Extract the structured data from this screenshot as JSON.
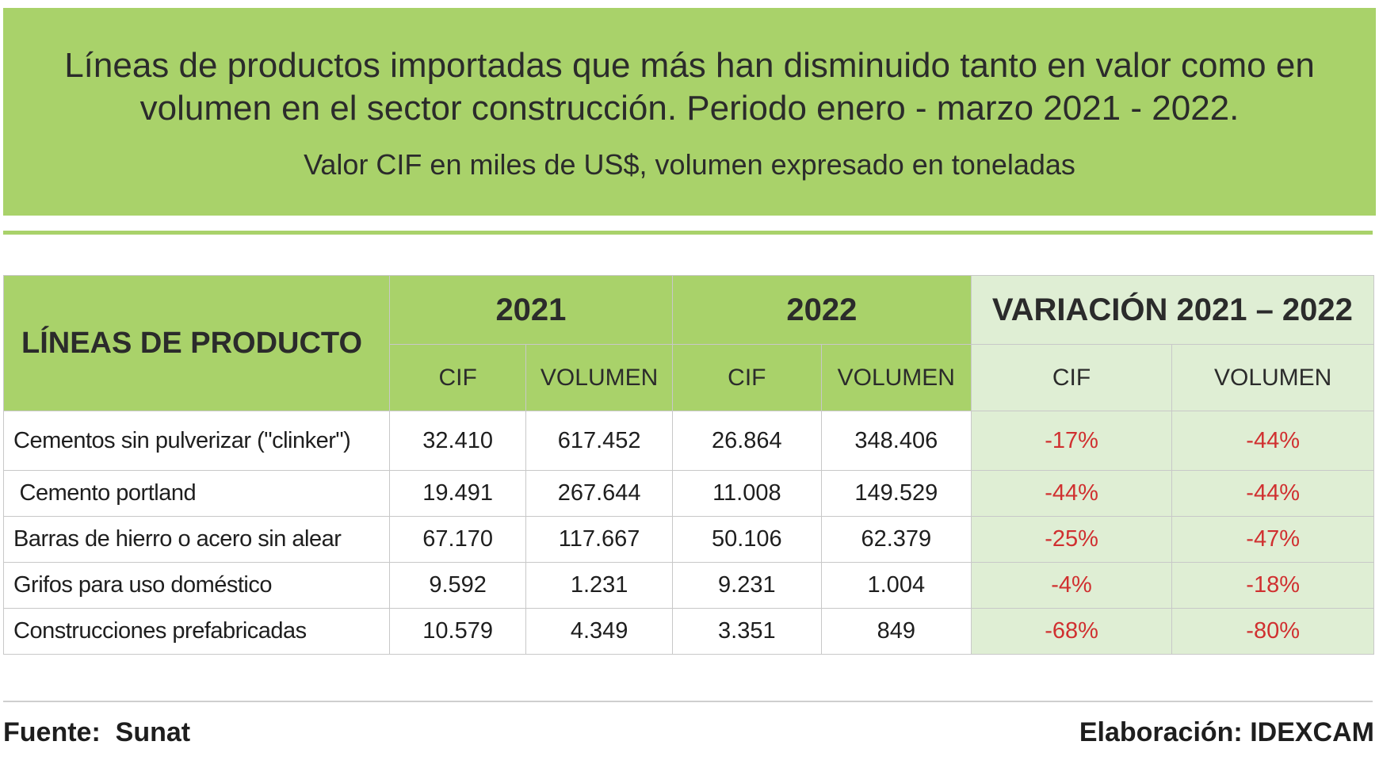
{
  "header": {
    "title_line1": "Líneas de productos importadas que más han disminuido tanto en valor como en",
    "title_line2": "volumen en el sector construcción. Periodo enero - marzo 2021 - 2022.",
    "subtitle": "Valor CIF en miles de US$, volumen expresado en toneladas"
  },
  "colors": {
    "header_green": "#a9d26a",
    "variation_bg": "#dfeed4",
    "negative_red": "#d03030"
  },
  "chart_data": {
    "type": "table",
    "columns": {
      "product": "LÍNEAS DE PRODUCTO",
      "year1": "2021",
      "year2": "2022",
      "variation": "VARIACIÓN 2021 – 2022",
      "cif": "CIF",
      "volumen": "VOLUMEN"
    },
    "rows": [
      {
        "product": "Cementos sin pulverizar (\"clinker\")",
        "cif_2021": "32.410",
        "vol_2021": "617.452",
        "cif_2022": "26.864",
        "vol_2022": "348.406",
        "var_cif": "-17%",
        "var_vol": "-44%"
      },
      {
        "product": " Cemento portland",
        "cif_2021": "19.491",
        "vol_2021": "267.644",
        "cif_2022": "11.008",
        "vol_2022": "149.529",
        "var_cif": "-44%",
        "var_vol": "-44%"
      },
      {
        "product": "Barras de hierro o acero sin alear",
        "cif_2021": "67.170",
        "vol_2021": "117.667",
        "cif_2022": "50.106",
        "vol_2022": "62.379",
        "var_cif": "-25%",
        "var_vol": "-47%"
      },
      {
        "product": "Grifos para uso doméstico",
        "cif_2021": "9.592",
        "vol_2021": "1.231",
        "cif_2022": "9.231",
        "vol_2022": "1.004",
        "var_cif": "-4%",
        "var_vol": "-18%"
      },
      {
        "product": "Construcciones prefabricadas",
        "cif_2021": "10.579",
        "vol_2021": "4.349",
        "cif_2022": "3.351",
        "vol_2022": "849",
        "var_cif": "-68%",
        "var_vol": "-80%"
      }
    ]
  },
  "footer": {
    "source": "Fuente:  Sunat",
    "credit": "Elaboración: IDEXCAM"
  }
}
